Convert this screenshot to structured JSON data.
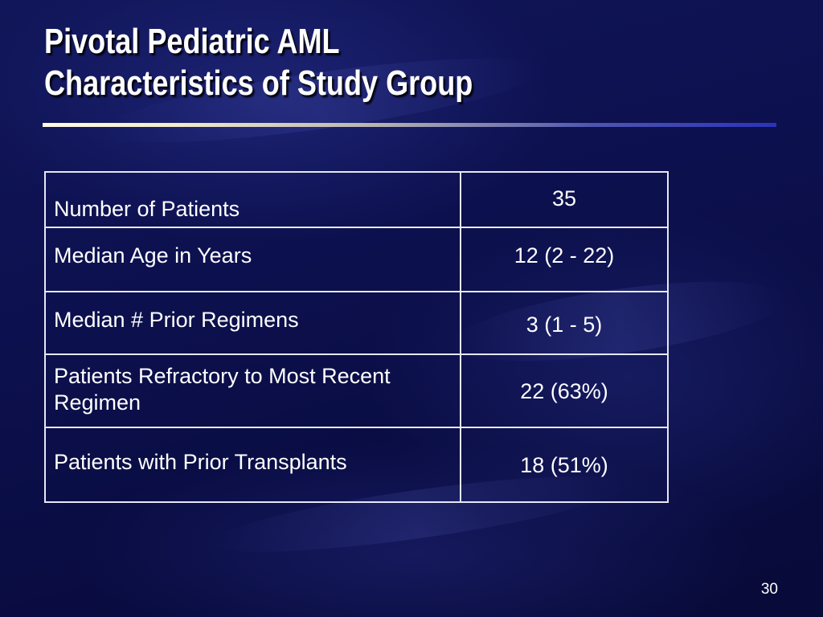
{
  "slide": {
    "title_line1": "Pivotal Pediatric AML",
    "title_line2": "Characteristics of Study Group",
    "page_number": "30"
  },
  "table": {
    "rows": [
      {
        "label": "Number of Patients",
        "value": "35"
      },
      {
        "label": "Median Age in Years",
        "value": "12 (2 - 22)"
      },
      {
        "label": "Median # Prior Regimens",
        "value": "3 (1 - 5)"
      },
      {
        "label": "Patients Refractory to Most Recent Regimen",
        "value": "22 (63%)"
      },
      {
        "label": "Patients with Prior Transplants",
        "value": "18 (51%)"
      }
    ]
  },
  "colors": {
    "background": "#0b0f3f",
    "text": "#ffffff",
    "table_border": "#e6e8f5"
  }
}
